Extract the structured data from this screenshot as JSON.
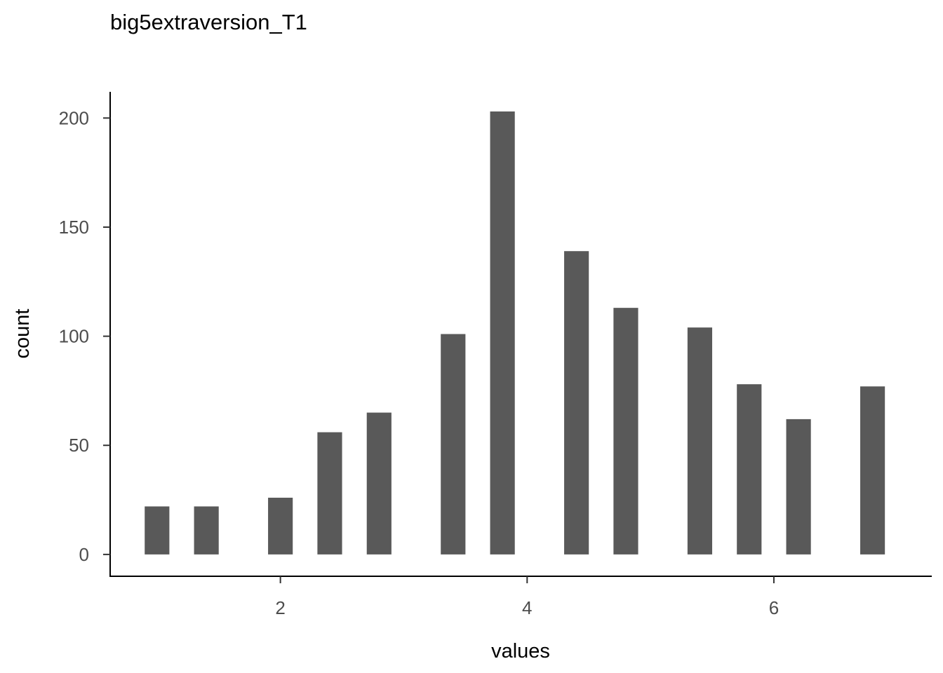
{
  "chart_data": {
    "type": "bar",
    "title": "big5extraversion_T1",
    "xlabel": "values",
    "ylabel": "count",
    "x": [
      1.0,
      1.4,
      2.0,
      2.4,
      2.8,
      3.4,
      3.8,
      4.4,
      4.8,
      5.4,
      5.8,
      6.2,
      6.8
    ],
    "values": [
      22,
      22,
      26,
      56,
      65,
      101,
      203,
      139,
      113,
      104,
      78,
      62,
      77
    ],
    "bar_width": 0.2,
    "xlim": [
      0.62,
      7.28
    ],
    "ylim": [
      -10,
      212
    ],
    "x_ticks": [
      2,
      4,
      6
    ],
    "y_ticks": [
      0,
      50,
      100,
      150,
      200
    ],
    "x_tick_labels": [
      "2",
      "4",
      "6"
    ],
    "y_tick_labels": [
      "0",
      "50",
      "100",
      "150",
      "200"
    ],
    "grid": false,
    "legend": "none",
    "bar_color": "#595959"
  }
}
